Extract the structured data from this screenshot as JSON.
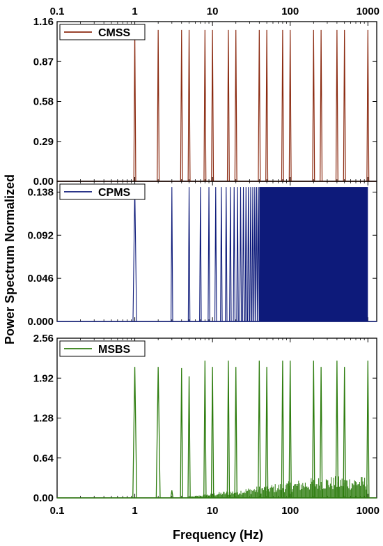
{
  "figure": {
    "ylabel": "Power Spectrum Normalized",
    "xlabel": "Frequency (Hz)"
  },
  "chart_data": [
    {
      "type": "line",
      "legend": "CMSS",
      "color": "#8b2a10",
      "xscale": "log",
      "xlim": [
        0.1,
        1300
      ],
      "ylim": [
        0,
        1.16
      ],
      "xticks": [
        0.1,
        1,
        10,
        100,
        1000
      ],
      "xtick_labels_top": [
        "0.1",
        "1",
        "10",
        "100",
        "1000"
      ],
      "yticks": [
        0.0,
        0.29,
        0.58,
        0.87,
        1.16
      ],
      "ytick_labels": [
        "0.00",
        "0.29",
        "0.58",
        "0.87",
        "1.16"
      ],
      "peaks": [
        {
          "x": 1,
          "y": 1.1
        },
        {
          "x": 2,
          "y": 1.1
        },
        {
          "x": 4,
          "y": 1.1
        },
        {
          "x": 5,
          "y": 1.1
        },
        {
          "x": 8,
          "y": 1.1
        },
        {
          "x": 10,
          "y": 1.1
        },
        {
          "x": 16,
          "y": 1.1
        },
        {
          "x": 20,
          "y": 1.1
        },
        {
          "x": 40,
          "y": 1.1
        },
        {
          "x": 50,
          "y": 1.1
        },
        {
          "x": 80,
          "y": 1.1
        },
        {
          "x": 100,
          "y": 1.1
        },
        {
          "x": 200,
          "y": 1.1
        },
        {
          "x": 250,
          "y": 1.1
        },
        {
          "x": 400,
          "y": 1.1
        },
        {
          "x": 500,
          "y": 1.1
        },
        {
          "x": 1000,
          "y": 1.1
        }
      ]
    },
    {
      "type": "line",
      "legend": "CPMS",
      "color": "#0d1a7a",
      "xscale": "log",
      "xlim": [
        0.1,
        1300
      ],
      "ylim": [
        0,
        0.1495
      ],
      "yticks": [
        0.0,
        0.046,
        0.092,
        0.138
      ],
      "ytick_labels": [
        "0.000",
        "0.046",
        "0.092",
        "0.138"
      ],
      "peak_value": 0.1435,
      "dense_band_start": 40,
      "dense_band_end": 1000,
      "peaks": [
        {
          "x": 1,
          "y": 0.1435
        },
        {
          "x": 3,
          "y": 0.1435
        },
        {
          "x": 5,
          "y": 0.1435
        },
        {
          "x": 7,
          "y": 0.1435
        },
        {
          "x": 9,
          "y": 0.1435
        },
        {
          "x": 11,
          "y": 0.1435
        },
        {
          "x": 13,
          "y": 0.1435
        },
        {
          "x": 15,
          "y": 0.1435
        },
        {
          "x": 17,
          "y": 0.1435
        },
        {
          "x": 19,
          "y": 0.1435
        },
        {
          "x": 21,
          "y": 0.1435
        },
        {
          "x": 23,
          "y": 0.1435
        },
        {
          "x": 25,
          "y": 0.1435
        },
        {
          "x": 27,
          "y": 0.1435
        },
        {
          "x": 29,
          "y": 0.1435
        },
        {
          "x": 31,
          "y": 0.1435
        },
        {
          "x": 33,
          "y": 0.1435
        },
        {
          "x": 35,
          "y": 0.1435
        },
        {
          "x": 37,
          "y": 0.1435
        },
        {
          "x": 39,
          "y": 0.1435
        }
      ]
    },
    {
      "type": "line",
      "legend": "MSBS",
      "color": "#2e7d0f",
      "xscale": "log",
      "xlim": [
        0.1,
        1300
      ],
      "ylim": [
        0,
        2.56
      ],
      "xticks": [
        0.1,
        1,
        10,
        100,
        1000
      ],
      "xtick_labels": [
        "0.1",
        "1",
        "10",
        "100",
        "1000"
      ],
      "yticks": [
        0.0,
        0.64,
        1.28,
        1.92,
        2.56
      ],
      "ytick_labels": [
        "0.00",
        "0.64",
        "1.28",
        "1.92",
        "2.56"
      ],
      "peaks": [
        {
          "x": 1,
          "y": 2.1
        },
        {
          "x": 2,
          "y": 2.1
        },
        {
          "x": 3,
          "y": 0.12
        },
        {
          "x": 4,
          "y": 2.08
        },
        {
          "x": 5,
          "y": 1.95
        },
        {
          "x": 8,
          "y": 2.2
        },
        {
          "x": 10,
          "y": 2.1
        },
        {
          "x": 16,
          "y": 2.2
        },
        {
          "x": 20,
          "y": 2.1
        },
        {
          "x": 40,
          "y": 2.2
        },
        {
          "x": 50,
          "y": 2.1
        },
        {
          "x": 80,
          "y": 2.2
        },
        {
          "x": 100,
          "y": 2.2
        },
        {
          "x": 200,
          "y": 2.2
        },
        {
          "x": 250,
          "y": 2.1
        },
        {
          "x": 400,
          "y": 2.2
        },
        {
          "x": 500,
          "y": 2.1
        },
        {
          "x": 1000,
          "y": 2.2
        }
      ],
      "noise_floor_range": [
        0.02,
        0.35
      ],
      "noise_start": 5
    }
  ]
}
